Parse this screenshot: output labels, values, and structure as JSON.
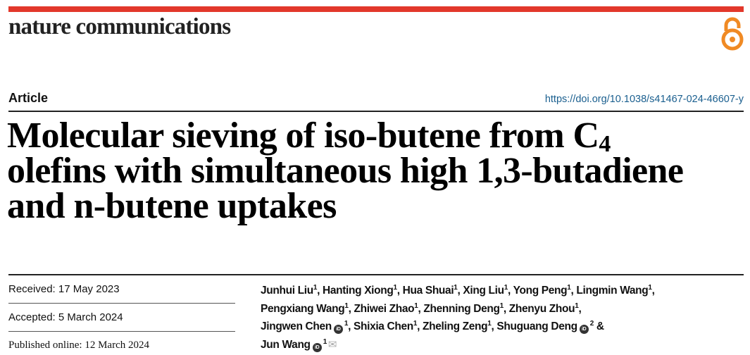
{
  "header": {
    "journal": "nature communications",
    "brand_color": "#e2382b",
    "open_access_icon": "open-access-lock-icon",
    "open_access_color": "#f08a24"
  },
  "article": {
    "type": "Article",
    "doi": "https://doi.org/10.1038/s41467-024-46607-y",
    "title_line1_pre": "Molecular sieving of iso-butene from C",
    "title_line1_sub": "4",
    "title_line2": "olefins with simultaneous high 1,3-butadiene",
    "title_line3": "and n-butene uptakes"
  },
  "dates": {
    "received": "Received: 17 May 2023",
    "accepted": "Accepted: 5 March 2024",
    "published": "Published online: 12 March 2024"
  },
  "authors": {
    "line1": [
      {
        "name": "Junhui Liu",
        "aff": "1",
        "sep": ", "
      },
      {
        "name": "Hanting Xiong",
        "aff": "1",
        "sep": ", "
      },
      {
        "name": "Hua Shuai",
        "aff": "1",
        "sep": ", "
      },
      {
        "name": "Xing Liu",
        "aff": "1",
        "sep": ", "
      },
      {
        "name": "Yong Peng",
        "aff": "1",
        "sep": ", "
      },
      {
        "name": "Lingmin Wang",
        "aff": "1",
        "sep": ","
      }
    ],
    "line2": [
      {
        "name": "Pengxiang Wang",
        "aff": "1",
        "sep": ", "
      },
      {
        "name": "Zhiwei Zhao",
        "aff": "1",
        "sep": ", "
      },
      {
        "name": "Zhenning Deng",
        "aff": "1",
        "sep": ", "
      },
      {
        "name": "Zhenyu Zhou",
        "aff": "1",
        "sep": ","
      }
    ],
    "line3": [
      {
        "name": "Jingwen Chen",
        "orcid": true,
        "aff": "1",
        "sep": ", "
      },
      {
        "name": "Shixia Chen",
        "aff": "1",
        "sep": ", "
      },
      {
        "name": "Zheling Zeng",
        "aff": "1",
        "sep": ", "
      },
      {
        "name": "Shuguang Deng",
        "orcid": true,
        "aff": "2",
        "sep": " &"
      }
    ],
    "line4": [
      {
        "name": "Jun Wang",
        "orcid": true,
        "aff": "1",
        "sep": "",
        "mail": true
      }
    ],
    "orcid_label": "iD",
    "mail_glyph": "✉"
  }
}
